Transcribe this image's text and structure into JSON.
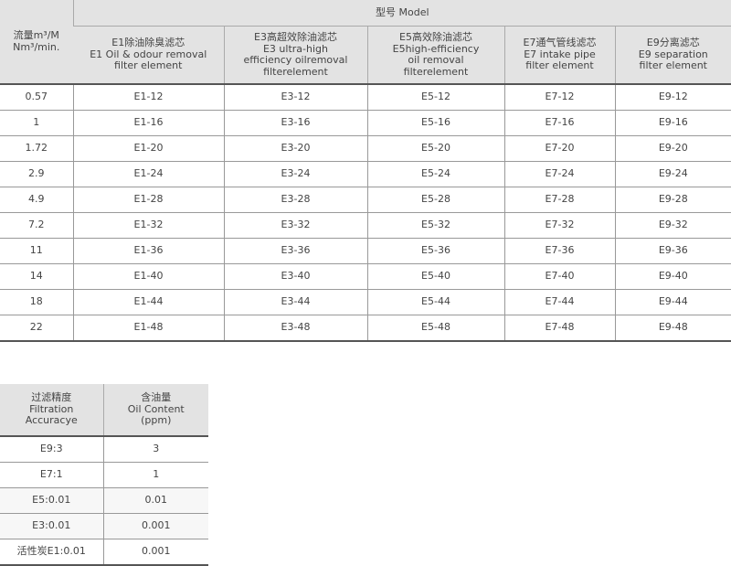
{
  "table1": {
    "flow_header": [
      "流量m³/M",
      "Nm³/min."
    ],
    "model_header": "型号 Model",
    "columns": [
      [
        "E1除油除臭滤芯",
        "E1 Oil & odour removal",
        "filter  element"
      ],
      [
        "E3高超效除油滤芯",
        "E3 ultra-high",
        "efficiency oilremoval",
        "filterelement"
      ],
      [
        "E5高效除油滤芯",
        "E5high-efficiency",
        "oil removal",
        "filterelement"
      ],
      [
        "E7通气管线滤芯",
        "E7 intake pipe",
        "filter element"
      ],
      [
        "E9分离滤芯",
        "E9 separation",
        "filter element"
      ]
    ],
    "rows": [
      [
        "0.57",
        "E1-12",
        "E3-12",
        "E5-12",
        "E7-12",
        "E9-12"
      ],
      [
        "1",
        "E1-16",
        "E3-16",
        "E5-16",
        "E7-16",
        "E9-16"
      ],
      [
        "1.72",
        "E1-20",
        "E3-20",
        "E5-20",
        "E7-20",
        "E9-20"
      ],
      [
        "2.9",
        "E1-24",
        "E3-24",
        "E5-24",
        "E7-24",
        "E9-24"
      ],
      [
        "4.9",
        "E1-28",
        "E3-28",
        "E5-28",
        "E7-28",
        "E9-28"
      ],
      [
        "7.2",
        "E1-32",
        "E3-32",
        "E5-32",
        "E7-32",
        "E9-32"
      ],
      [
        "11",
        "E1-36",
        "E3-36",
        "E5-36",
        "E7-36",
        "E9-36"
      ],
      [
        "14",
        "E1-40",
        "E3-40",
        "E5-40",
        "E7-40",
        "E9-40"
      ],
      [
        "18",
        "E1-44",
        "E3-44",
        "E5-44",
        "E7-44",
        "E9-44"
      ],
      [
        "22",
        "E1-48",
        "E3-48",
        "E5-48",
        "E7-48",
        "E9-48"
      ]
    ]
  },
  "table2": {
    "headers": [
      [
        "过滤精度",
        "Filtration",
        "Accuracye"
      ],
      [
        "含油量",
        "Oil Content",
        "(ppm)"
      ]
    ],
    "rows": [
      [
        "E9:3",
        "3"
      ],
      [
        "E7:1",
        "1"
      ],
      [
        "E5:0.01",
        "0.01"
      ],
      [
        "E3:0.01",
        "0.001"
      ],
      [
        "活性炭E1:0.01",
        "0.001"
      ]
    ]
  }
}
